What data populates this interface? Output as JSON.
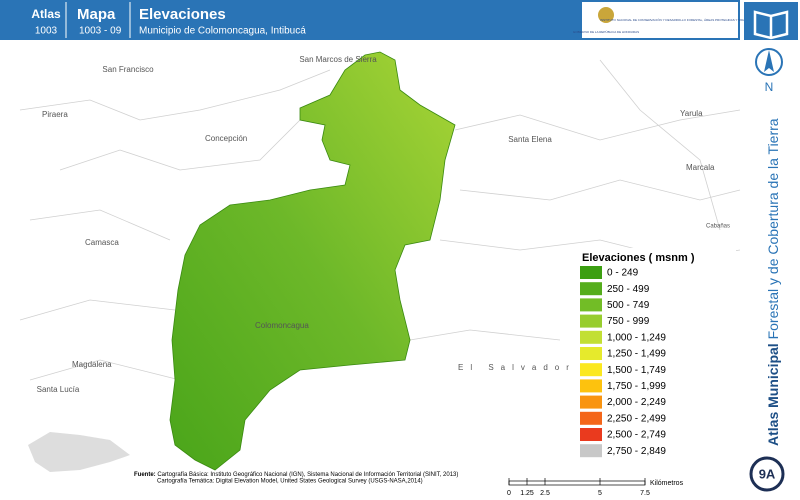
{
  "header": {
    "atlas_label": "Atlas",
    "atlas_code": "1003",
    "map_label": "Mapa",
    "map_code": "1003 - 09",
    "title": "Elevaciones",
    "subtitle": "Municipio de Colomoncagua, Intibucá",
    "logo_left": "GOBIERNO DE LA REPÚBLICA DE HONDURAS",
    "logo_right": "INSTITUTO NACIONAL DE CONSERVACIÓN Y DESARROLLO FORESTAL, ÁREAS PROTEGIDAS Y VIDA SILVESTRE ICF"
  },
  "places": {
    "san_francisco": "San Francisco",
    "piraera": "Piraera",
    "concepcion": "Concepción",
    "san_marcos": "San Marcos de Sierra",
    "santa_elena": "Santa Elena",
    "yarula": "Yarula",
    "marcala": "Marcala",
    "cabanas": "Cabañas",
    "camasca": "Camasca",
    "colomoncagua": "Colomoncagua",
    "magdalena": "Magdalena",
    "santa_lucia": "Santa Lucía",
    "el_salvador": "El Salvador"
  },
  "legend": {
    "title": "Elevaciones ( msnm )",
    "items": [
      {
        "label": "0 - 249",
        "color": "#3c9f12"
      },
      {
        "label": "250 - 499",
        "color": "#55ad1c"
      },
      {
        "label": "500 - 749",
        "color": "#72bd26"
      },
      {
        "label": "750 - 999",
        "color": "#97cd2e"
      },
      {
        "label": "1,000 - 1,249",
        "color": "#c2df34"
      },
      {
        "label": "1,250 - 1,499",
        "color": "#e6ea2c"
      },
      {
        "label": "1,500 - 1,749",
        "color": "#fbe81e"
      },
      {
        "label": "1,750 - 1,999",
        "color": "#fdc20e"
      },
      {
        "label": "2,000 - 2,249",
        "color": "#f99410"
      },
      {
        "label": "2,250 - 2,499",
        "color": "#f4661a"
      },
      {
        "label": "2,500 - 2,749",
        "color": "#ea3a1e"
      },
      {
        "label": "2,750 - 2,849",
        "color": "#c8c8c8"
      }
    ]
  },
  "source": {
    "label": "Fuente:",
    "line1": "Cartografía Básica: Instituto Geográfico Nacional (IGN), Sistema Nacional de Información Territorial (SINIT, 2013)",
    "line2": "Cartografía Temática: Digital Elevation Model, United States Geological Survey (USGS-NASA,2014)"
  },
  "scale": {
    "ticks": [
      "0",
      "1.25",
      "2.5",
      "5",
      "7.5"
    ],
    "unit": "Kilómetros"
  },
  "sidebar": {
    "north": "N",
    "title_bold": "Atlas Municipal",
    "title_rest": "Forestal y de Cobertura de la Tierra",
    "badge": "9A"
  }
}
